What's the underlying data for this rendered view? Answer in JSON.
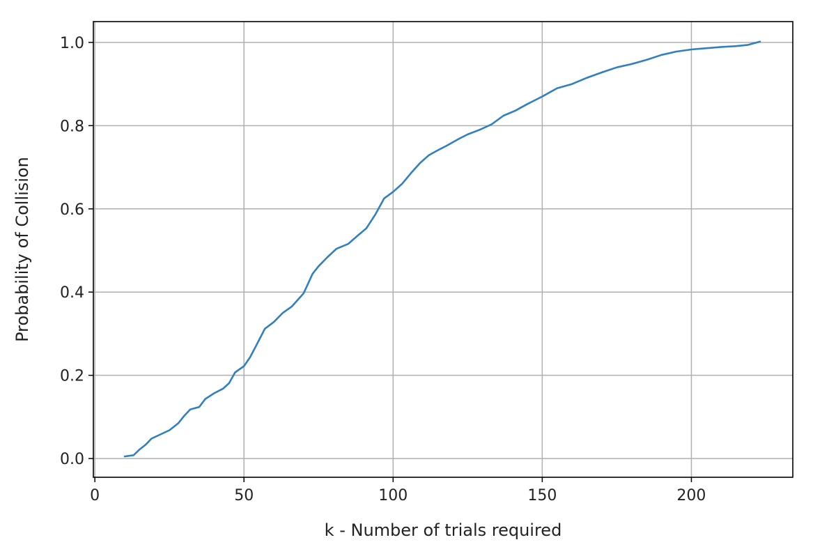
{
  "chart_data": {
    "type": "line",
    "title": "",
    "xlabel": "k - Number of trials required",
    "ylabel": "Probability of Collision",
    "xlim": [
      -0.5,
      234
    ],
    "ylim": [
      -0.045,
      1.05
    ],
    "xticks": [
      0,
      50,
      100,
      150,
      200
    ],
    "yticks": [
      0.0,
      0.2,
      0.4,
      0.6,
      0.8,
      1.0
    ],
    "xtick_labels": [
      "0",
      "50",
      "100",
      "150",
      "200"
    ],
    "ytick_labels": [
      "0.0",
      "0.2",
      "0.4",
      "0.6",
      "0.8",
      "1.0"
    ],
    "grid": true,
    "line_color": "#2f7fc1",
    "series": [
      {
        "x": [
          10,
          13,
          15,
          17,
          19,
          22,
          25,
          28,
          30,
          32,
          35,
          37,
          40,
          43,
          45,
          47,
          50,
          52,
          54,
          57,
          60,
          63,
          66,
          70,
          73,
          75,
          78,
          81,
          85,
          88,
          91,
          94,
          97,
          100,
          103,
          106,
          109,
          112,
          115,
          118,
          122,
          125,
          129,
          133,
          137,
          141,
          145,
          150,
          155,
          160,
          165,
          170,
          175,
          180,
          185,
          190,
          195,
          200,
          205,
          210,
          215,
          219,
          223
        ],
        "y": [
          0.005,
          0.008,
          0.022,
          0.033,
          0.048,
          0.058,
          0.068,
          0.085,
          0.103,
          0.118,
          0.124,
          0.143,
          0.157,
          0.168,
          0.181,
          0.207,
          0.222,
          0.243,
          0.27,
          0.312,
          0.328,
          0.35,
          0.365,
          0.397,
          0.444,
          0.462,
          0.484,
          0.504,
          0.516,
          0.535,
          0.553,
          0.586,
          0.625,
          0.641,
          0.66,
          0.686,
          0.71,
          0.729,
          0.741,
          0.752,
          0.768,
          0.779,
          0.79,
          0.803,
          0.824,
          0.836,
          0.852,
          0.87,
          0.89,
          0.9,
          0.915,
          0.928,
          0.94,
          0.948,
          0.958,
          0.97,
          0.978,
          0.983,
          0.986,
          0.989,
          0.991,
          0.994,
          1.002
        ]
      }
    ]
  }
}
